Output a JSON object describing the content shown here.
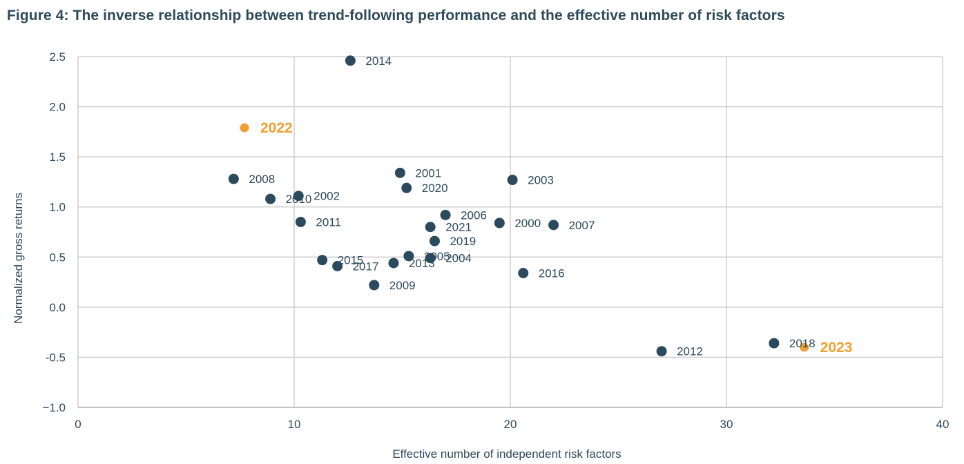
{
  "figure": {
    "title": "Figure 4: The inverse relationship between trend-following performance and the effective number of risk factors"
  },
  "chart_data": {
    "type": "scatter",
    "title": "Figure 4: The inverse relationship between trend-following performance and the effective number of risk factors",
    "xlabel": "Effective number of independent risk factors",
    "ylabel": "Normalized gross returns",
    "xlim": [
      0,
      40
    ],
    "ylim": [
      -1.0,
      2.5
    ],
    "xticks": [
      0,
      10,
      20,
      30,
      40
    ],
    "yticks": [
      -1.0,
      -0.5,
      0.0,
      0.5,
      1.0,
      1.5,
      2.0,
      2.5
    ],
    "ytick_labels": [
      "−1.0",
      "-0.5",
      "0.0",
      "0.5",
      "1.0",
      "1.5",
      "2.0",
      "2.5"
    ],
    "grid": true,
    "colors": {
      "default": "#2c4a5e",
      "highlight": "#f0a030",
      "grid": "#d0d0d0"
    },
    "points": [
      {
        "label": "2014",
        "x": 12.6,
        "y": 2.46
      },
      {
        "label": "2022",
        "x": 7.7,
        "y": 1.79,
        "highlight": true
      },
      {
        "label": "2008",
        "x": 7.2,
        "y": 1.28
      },
      {
        "label": "2010",
        "x": 8.9,
        "y": 1.08
      },
      {
        "label": "2002",
        "x": 10.2,
        "y": 1.11
      },
      {
        "label": "2011",
        "x": 10.3,
        "y": 0.85
      },
      {
        "label": "2001",
        "x": 14.9,
        "y": 1.34
      },
      {
        "label": "2020",
        "x": 15.2,
        "y": 1.19
      },
      {
        "label": "2003",
        "x": 20.1,
        "y": 1.27
      },
      {
        "label": "2006",
        "x": 17.0,
        "y": 0.92
      },
      {
        "label": "2021",
        "x": 16.3,
        "y": 0.8
      },
      {
        "label": "2000",
        "x": 19.5,
        "y": 0.84
      },
      {
        "label": "2007",
        "x": 22.0,
        "y": 0.82
      },
      {
        "label": "2019",
        "x": 16.5,
        "y": 0.66
      },
      {
        "label": "2015",
        "x": 11.3,
        "y": 0.47
      },
      {
        "label": "2017",
        "x": 12.0,
        "y": 0.41
      },
      {
        "label": "2013",
        "x": 14.6,
        "y": 0.44
      },
      {
        "label": "2005",
        "x": 15.3,
        "y": 0.51
      },
      {
        "label": "2004",
        "x": 16.3,
        "y": 0.49
      },
      {
        "label": "2009",
        "x": 13.7,
        "y": 0.22
      },
      {
        "label": "2016",
        "x": 20.6,
        "y": 0.34
      },
      {
        "label": "2012",
        "x": 27.0,
        "y": -0.44
      },
      {
        "label": "2018",
        "x": 32.2,
        "y": -0.36
      },
      {
        "label": "2023",
        "x": 33.6,
        "y": -0.4,
        "highlight": true
      }
    ]
  }
}
